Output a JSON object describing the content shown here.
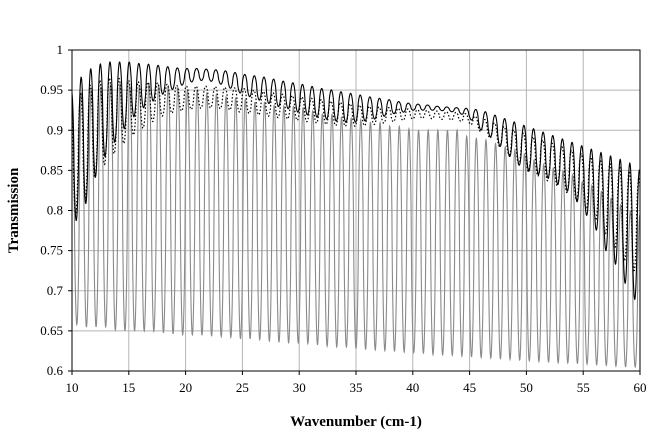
{
  "chart_data": {
    "type": "line",
    "title": "",
    "xlabel": "Wavenumber  (cm-1)",
    "ylabel": "Transmission",
    "xlim": [
      10,
      60
    ],
    "ylim": [
      0.6,
      1.0
    ],
    "x_ticks": [
      10,
      15,
      20,
      25,
      30,
      35,
      40,
      45,
      50,
      55,
      60
    ],
    "y_ticks": [
      0.6,
      0.65,
      0.7,
      0.75,
      0.8,
      0.85,
      0.9,
      0.95,
      1.0
    ],
    "x_tick_labels": [
      "10",
      "15",
      "20",
      "25",
      "30",
      "35",
      "40",
      "45",
      "50",
      "55",
      "60"
    ],
    "y_tick_labels": [
      "0.6",
      "0.65",
      "0.7",
      "0.75",
      "0.8",
      "0.85",
      "0.9",
      "0.95",
      "1"
    ],
    "grid": true,
    "legend": "none",
    "series": [
      {
        "style": "grey-solid",
        "color": "#8a8a8a",
        "x": [
          10,
          11,
          12,
          13,
          14,
          15,
          16,
          17,
          18,
          19,
          20,
          21,
          22,
          23,
          24,
          25,
          26,
          27,
          28,
          29,
          30,
          31,
          32,
          33,
          34,
          35,
          36,
          37,
          38,
          39,
          40,
          41,
          42,
          43,
          44,
          45,
          46,
          47,
          48,
          49,
          50,
          51,
          52,
          53,
          54,
          55,
          56,
          57,
          58,
          59,
          60
        ],
        "upper_envelope": [
          0.93,
          0.95,
          0.95,
          0.955,
          0.96,
          0.955,
          0.955,
          0.96,
          0.955,
          0.955,
          0.95,
          0.95,
          0.945,
          0.945,
          0.94,
          0.94,
          0.935,
          0.935,
          0.93,
          0.93,
          0.93,
          0.925,
          0.92,
          0.92,
          0.915,
          0.915,
          0.91,
          0.91,
          0.905,
          0.905,
          0.9,
          0.9,
          0.9,
          0.9,
          0.9,
          0.89,
          0.89,
          0.885,
          0.88,
          0.875,
          0.87,
          0.86,
          0.855,
          0.85,
          0.845,
          0.835,
          0.83,
          0.82,
          0.81,
          0.8,
          0.795
        ],
        "lower_envelope": [
          0.66,
          0.655,
          0.655,
          0.655,
          0.65,
          0.65,
          0.65,
          0.65,
          0.648,
          0.646,
          0.645,
          0.645,
          0.644,
          0.643,
          0.642,
          0.64,
          0.64,
          0.638,
          0.636,
          0.635,
          0.635,
          0.634,
          0.632,
          0.63,
          0.63,
          0.628,
          0.627,
          0.626,
          0.625,
          0.624,
          0.623,
          0.622,
          0.62,
          0.62,
          0.619,
          0.618,
          0.617,
          0.616,
          0.615,
          0.614,
          0.613,
          0.612,
          0.611,
          0.61,
          0.61,
          0.609,
          0.608,
          0.607,
          0.606,
          0.605,
          0.605
        ],
        "cycles_per_unit": 1.18
      },
      {
        "style": "black-solid",
        "color": "#000000",
        "x": [
          10,
          11,
          12,
          13,
          14,
          15,
          16,
          17,
          18,
          19,
          20,
          21,
          22,
          23,
          24,
          25,
          26,
          27,
          28,
          29,
          30,
          31,
          32,
          33,
          34,
          35,
          36,
          37,
          38,
          39,
          40,
          41,
          42,
          43,
          44,
          45,
          46,
          47,
          48,
          49,
          50,
          51,
          52,
          53,
          54,
          55,
          56,
          57,
          58,
          59,
          60
        ],
        "upper_envelope": [
          0.95,
          0.97,
          0.98,
          0.985,
          0.985,
          0.985,
          0.983,
          0.982,
          0.98,
          0.978,
          0.977,
          0.977,
          0.976,
          0.975,
          0.973,
          0.97,
          0.968,
          0.966,
          0.963,
          0.96,
          0.958,
          0.955,
          0.952,
          0.95,
          0.947,
          0.945,
          0.942,
          0.94,
          0.938,
          0.935,
          0.933,
          0.932,
          0.93,
          0.929,
          0.928,
          0.927,
          0.925,
          0.92,
          0.915,
          0.91,
          0.905,
          0.9,
          0.895,
          0.89,
          0.885,
          0.88,
          0.875,
          0.87,
          0.865,
          0.86,
          0.85
        ],
        "lower_envelope": [
          0.78,
          0.8,
          0.84,
          0.87,
          0.89,
          0.91,
          0.925,
          0.935,
          0.945,
          0.952,
          0.958,
          0.962,
          0.962,
          0.958,
          0.952,
          0.945,
          0.94,
          0.935,
          0.93,
          0.927,
          0.922,
          0.918,
          0.915,
          0.912,
          0.91,
          0.91,
          0.912,
          0.915,
          0.92,
          0.922,
          0.925,
          0.925,
          0.925,
          0.924,
          0.922,
          0.915,
          0.9,
          0.89,
          0.875,
          0.86,
          0.85,
          0.845,
          0.84,
          0.83,
          0.82,
          0.8,
          0.78,
          0.75,
          0.73,
          0.7,
          0.68
        ],
        "cycles_per_unit": 1.18
      },
      {
        "style": "black-dotted",
        "color": "#000000",
        "x": [
          10,
          11,
          12,
          13,
          14,
          15,
          16,
          17,
          18,
          19,
          20,
          21,
          22,
          23,
          24,
          25,
          26,
          27,
          28,
          29,
          30,
          31,
          32,
          33,
          34,
          35,
          36,
          37,
          38,
          39,
          40,
          41,
          42,
          43,
          44,
          45,
          46,
          47,
          48,
          49,
          50,
          51,
          52,
          53,
          54,
          55,
          56,
          57,
          58,
          59,
          60
        ],
        "upper_envelope": [
          0.93,
          0.95,
          0.96,
          0.965,
          0.965,
          0.962,
          0.96,
          0.96,
          0.958,
          0.956,
          0.955,
          0.955,
          0.955,
          0.954,
          0.953,
          0.952,
          0.95,
          0.948,
          0.946,
          0.944,
          0.942,
          0.94,
          0.938,
          0.936,
          0.934,
          0.932,
          0.93,
          0.929,
          0.928,
          0.927,
          0.926,
          0.925,
          0.924,
          0.923,
          0.922,
          0.92,
          0.915,
          0.91,
          0.905,
          0.9,
          0.895,
          0.89,
          0.885,
          0.88,
          0.875,
          0.87,
          0.865,
          0.86,
          0.855,
          0.85,
          0.84
        ],
        "lower_envelope": [
          0.79,
          0.81,
          0.84,
          0.86,
          0.875,
          0.89,
          0.9,
          0.91,
          0.918,
          0.922,
          0.925,
          0.927,
          0.928,
          0.927,
          0.925,
          0.922,
          0.92,
          0.918,
          0.916,
          0.914,
          0.912,
          0.91,
          0.908,
          0.906,
          0.905,
          0.905,
          0.906,
          0.908,
          0.91,
          0.912,
          0.914,
          0.915,
          0.914,
          0.913,
          0.912,
          0.908,
          0.898,
          0.888,
          0.875,
          0.862,
          0.85,
          0.843,
          0.836,
          0.828,
          0.818,
          0.805,
          0.79,
          0.77,
          0.75,
          0.73,
          0.72
        ],
        "cycles_per_unit": 1.18
      }
    ]
  }
}
